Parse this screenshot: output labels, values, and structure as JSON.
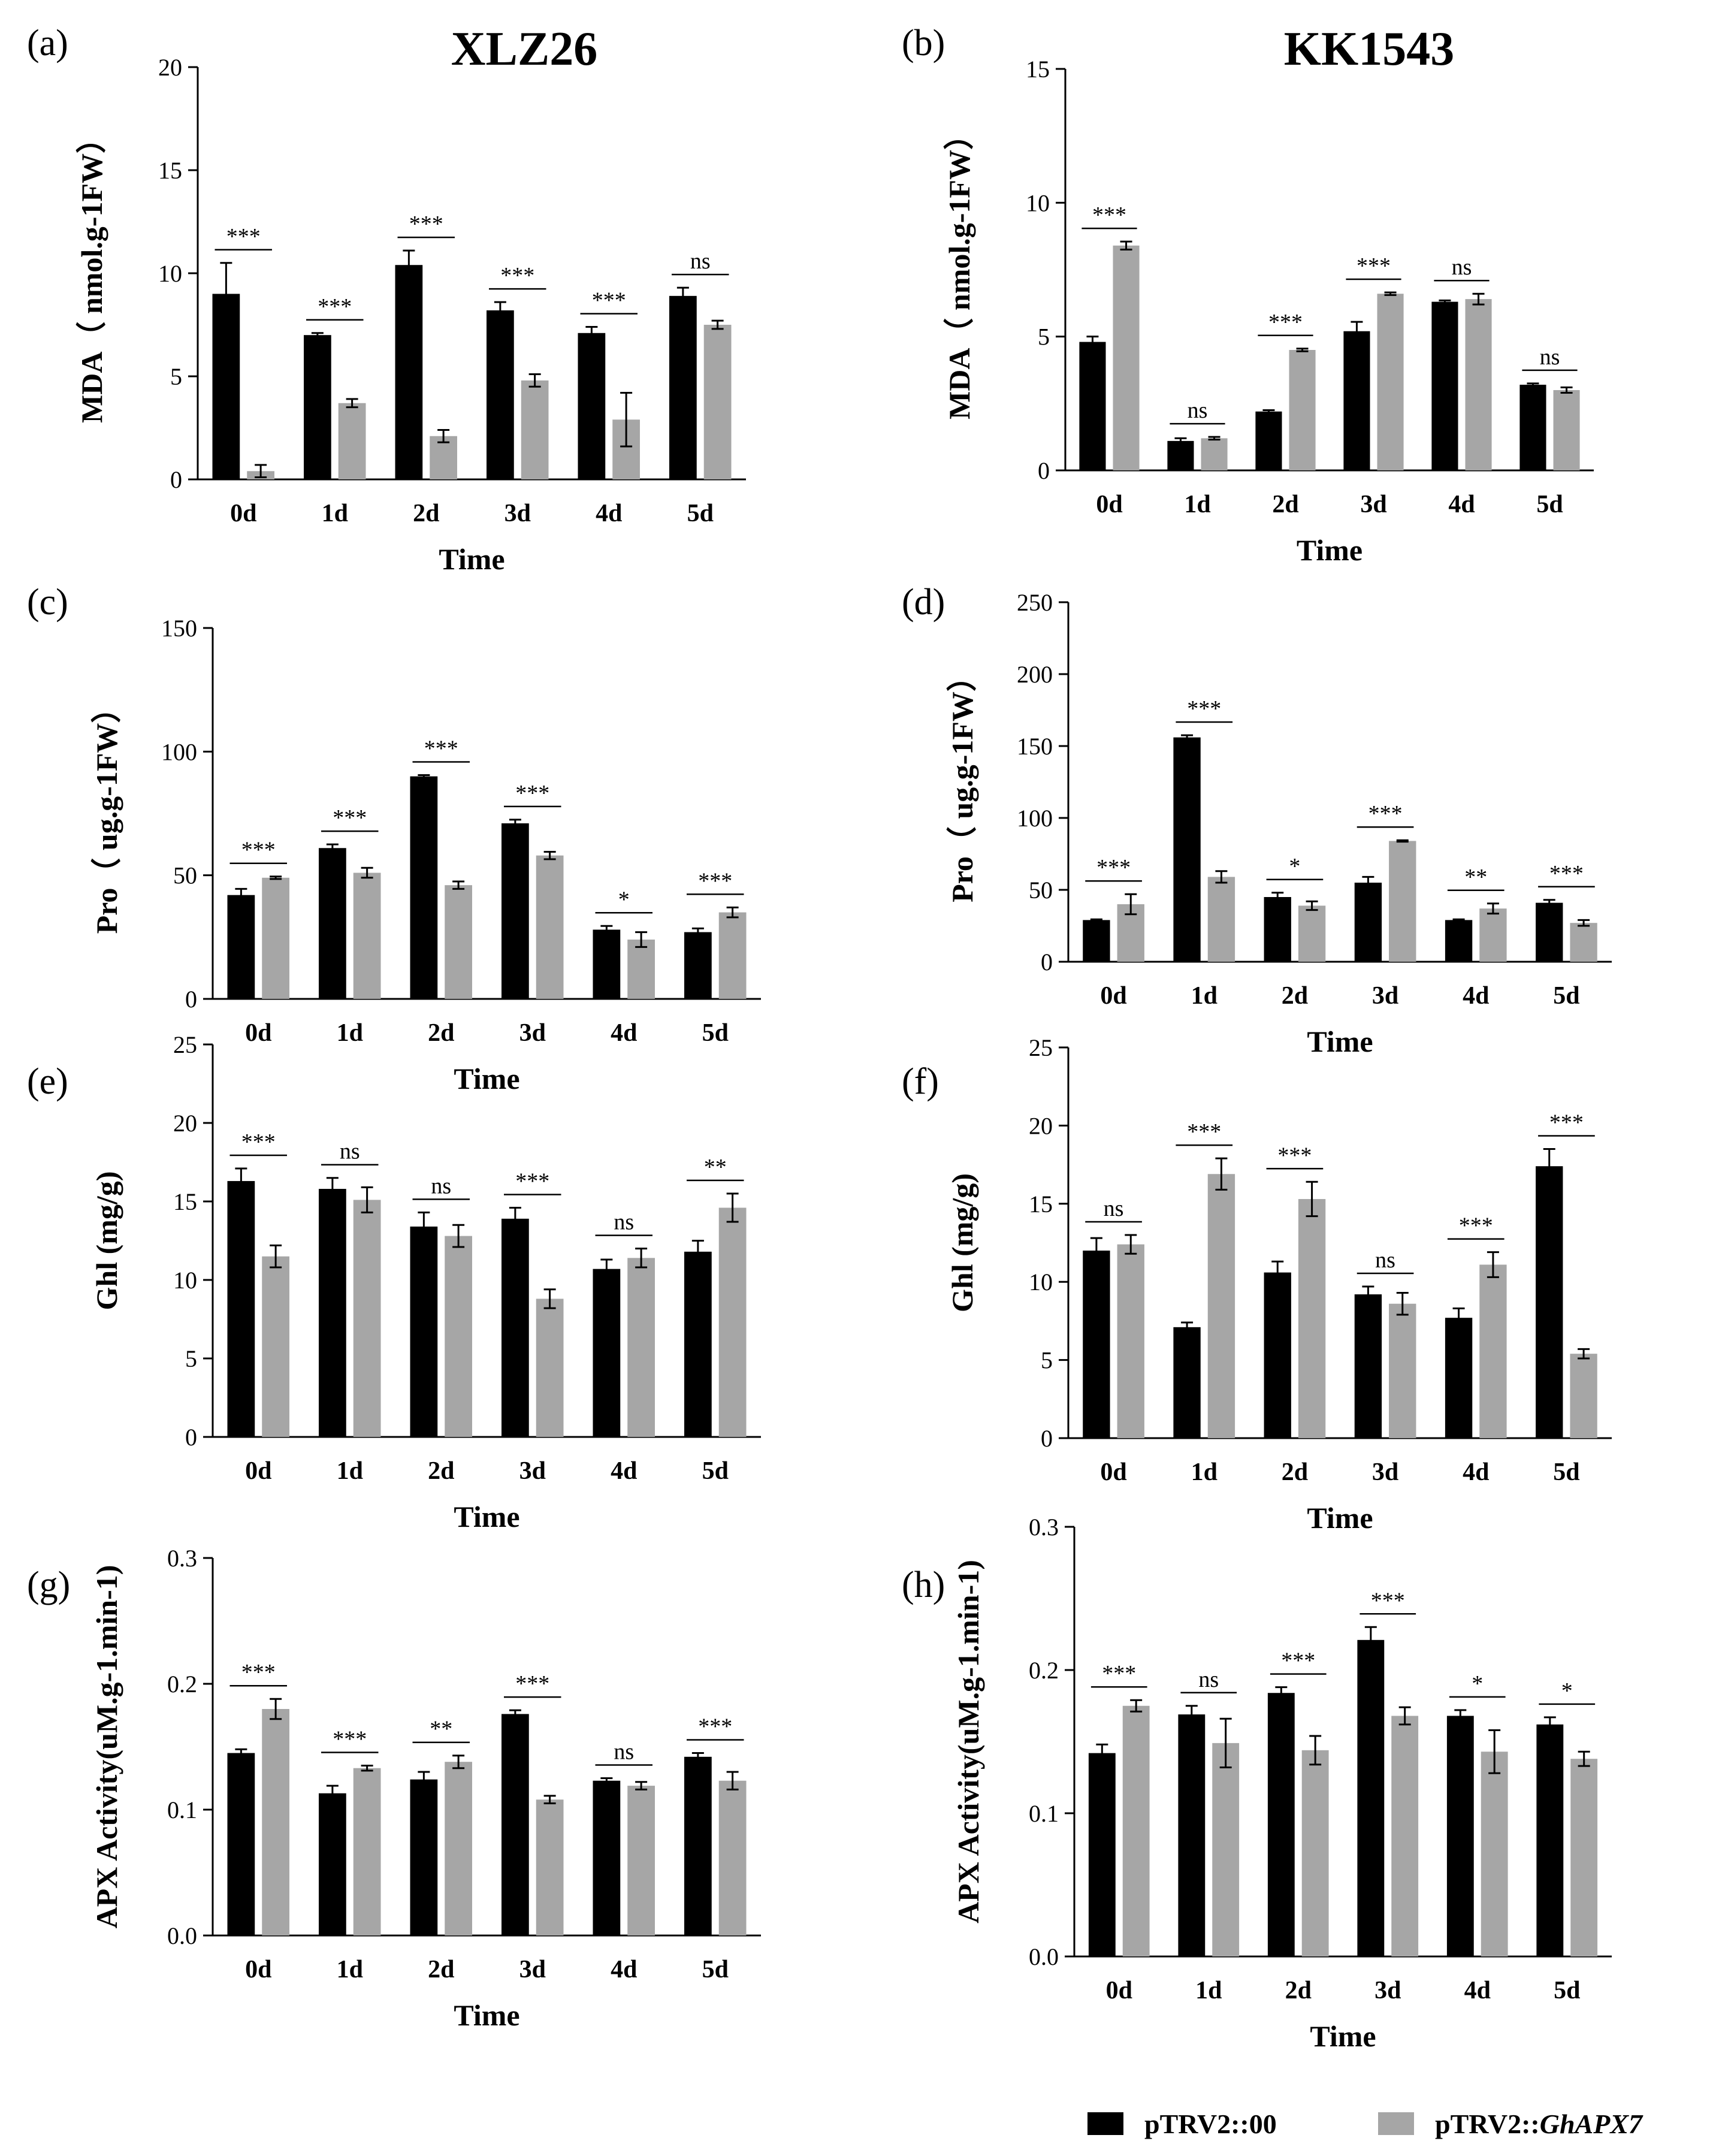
{
  "columns": [
    {
      "title": "XLZ26"
    },
    {
      "title": "KK1543"
    }
  ],
  "legend": {
    "items": [
      {
        "label_prefix": "pTRV2::",
        "label_main": "00",
        "italic": false,
        "color": "#000000"
      },
      {
        "label_prefix": "pTRV2::",
        "label_main": "GhAPX7",
        "italic": true,
        "color": "#a6a6a6"
      }
    ]
  },
  "colors": {
    "series1": "#000000",
    "series2": "#a6a6a6",
    "axis": "#000000"
  },
  "chart_data": [
    {
      "panel": "(a)",
      "type": "bar",
      "title": "XLZ26",
      "xlabel": "Time",
      "ylabel": "MDA（ nmol.g-1FW）",
      "ylim": [
        0,
        20
      ],
      "yticks": [
        0,
        5,
        10,
        15,
        20
      ],
      "ytick_labels": [
        "0",
        "5",
        "10",
        "15",
        "20"
      ],
      "categories": [
        "0d",
        "1d",
        "2d",
        "3d",
        "4d",
        "5d"
      ],
      "series": [
        {
          "name": "pTRV2::00",
          "values": [
            9.0,
            7.0,
            10.4,
            8.2,
            7.1,
            8.9
          ],
          "errors": [
            1.5,
            0.1,
            0.7,
            0.4,
            0.3,
            0.4
          ]
        },
        {
          "name": "pTRV2::GhAPX7",
          "values": [
            0.4,
            3.7,
            2.1,
            4.8,
            2.9,
            7.5
          ],
          "errors": [
            0.3,
            0.2,
            0.3,
            0.3,
            1.3,
            0.2
          ]
        }
      ],
      "significance": [
        "***",
        "***",
        "***",
        "***",
        "***",
        "ns"
      ]
    },
    {
      "panel": "(b)",
      "type": "bar",
      "title": "KK1543",
      "xlabel": "Time",
      "ylabel": "MDA（ nmol.g-1FW）",
      "ylim": [
        0,
        15
      ],
      "yticks": [
        0,
        5,
        10,
        15
      ],
      "ytick_labels": [
        "0",
        "5",
        "10",
        "15"
      ],
      "categories": [
        "0d",
        "1d",
        "2d",
        "3d",
        "4d",
        "5d"
      ],
      "series": [
        {
          "name": "pTRV2::00",
          "values": [
            4.8,
            1.1,
            2.2,
            5.2,
            6.3,
            3.2
          ],
          "errors": [
            0.2,
            0.1,
            0.05,
            0.35,
            0.05,
            0.05
          ]
        },
        {
          "name": "pTRV2::GhAPX7",
          "values": [
            8.4,
            1.2,
            4.5,
            6.6,
            6.4,
            3.0
          ],
          "errors": [
            0.15,
            0.05,
            0.05,
            0.05,
            0.2,
            0.1
          ]
        }
      ],
      "significance": [
        "***",
        "ns",
        "***",
        "***",
        "ns",
        "ns"
      ]
    },
    {
      "panel": "(c)",
      "type": "bar",
      "xlabel": "Time",
      "ylabel": "Pro（ ug.g-1FW）",
      "ylim": [
        0,
        150
      ],
      "yticks": [
        0,
        50,
        100,
        150
      ],
      "ytick_labels": [
        "0",
        "50",
        "100",
        "150"
      ],
      "categories": [
        "0d",
        "1d",
        "2d",
        "3d",
        "4d",
        "5d"
      ],
      "series": [
        {
          "name": "pTRV2::00",
          "values": [
            42,
            61,
            90,
            71,
            28,
            27
          ],
          "errors": [
            2.5,
            1.5,
            0.5,
            1.5,
            1.5,
            1.5
          ]
        },
        {
          "name": "pTRV2::GhAPX7",
          "values": [
            49,
            51,
            46,
            58,
            24,
            35
          ],
          "errors": [
            0.5,
            2.0,
            1.5,
            1.5,
            3.0,
            2.0
          ]
        }
      ],
      "significance": [
        "***",
        "***",
        "***",
        "***",
        "*",
        "***"
      ]
    },
    {
      "panel": "(d)",
      "type": "bar",
      "xlabel": "Time",
      "ylabel": "Pro（ ug.g-1FW）",
      "ylim": [
        0,
        250
      ],
      "yticks": [
        0,
        50,
        100,
        150,
        200,
        250
      ],
      "ytick_labels": [
        "0",
        "50",
        "100",
        "150",
        "200",
        "250"
      ],
      "categories": [
        "0d",
        "1d",
        "2d",
        "3d",
        "4d",
        "5d"
      ],
      "series": [
        {
          "name": "pTRV2::00",
          "values": [
            29,
            156,
            45,
            55,
            29,
            41
          ],
          "errors": [
            0.5,
            1.5,
            3,
            4,
            0.5,
            2
          ]
        },
        {
          "name": "pTRV2::GhAPX7",
          "values": [
            40,
            59,
            39,
            84,
            37,
            27
          ],
          "errors": [
            7,
            4,
            3,
            0.5,
            3.5,
            2
          ]
        }
      ],
      "significance": [
        "***",
        "***",
        "*",
        "***",
        "**",
        "***"
      ]
    },
    {
      "panel": "(e)",
      "type": "bar",
      "xlabel": "Time",
      "ylabel": "Ghl (mg/g)",
      "ylim": [
        0,
        25
      ],
      "yticks": [
        0,
        5,
        10,
        15,
        20,
        25
      ],
      "ytick_labels": [
        "0",
        "5",
        "10",
        "15",
        "20",
        "25"
      ],
      "categories": [
        "0d",
        "1d",
        "2d",
        "3d",
        "4d",
        "5d"
      ],
      "series": [
        {
          "name": "pTRV2::00",
          "values": [
            16.3,
            15.8,
            13.4,
            13.9,
            10.7,
            11.8
          ],
          "errors": [
            0.8,
            0.7,
            0.9,
            0.7,
            0.6,
            0.7
          ]
        },
        {
          "name": "pTRV2::GhAPX7",
          "values": [
            11.5,
            15.1,
            12.8,
            8.8,
            11.4,
            14.6
          ],
          "errors": [
            0.7,
            0.8,
            0.7,
            0.6,
            0.6,
            0.9
          ]
        }
      ],
      "significance": [
        "***",
        "ns",
        "ns",
        "***",
        "ns",
        "**"
      ]
    },
    {
      "panel": "(f)",
      "type": "bar",
      "xlabel": "Time",
      "ylabel": "Ghl (mg/g)",
      "ylim": [
        0,
        25
      ],
      "yticks": [
        0,
        5,
        10,
        15,
        20,
        25
      ],
      "ytick_labels": [
        "0",
        "5",
        "10",
        "15",
        "20",
        "25"
      ],
      "categories": [
        "0d",
        "1d",
        "2d",
        "3d",
        "4d",
        "5d"
      ],
      "series": [
        {
          "name": "pTRV2::00",
          "values": [
            12.0,
            7.1,
            10.6,
            9.2,
            7.7,
            17.4
          ],
          "errors": [
            0.8,
            0.3,
            0.7,
            0.5,
            0.6,
            1.1
          ]
        },
        {
          "name": "pTRV2::GhAPX7",
          "values": [
            12.4,
            16.9,
            15.3,
            8.6,
            11.1,
            5.4
          ],
          "errors": [
            0.6,
            1.0,
            1.1,
            0.7,
            0.8,
            0.3
          ]
        }
      ],
      "significance": [
        "ns",
        "***",
        "***",
        "ns",
        "***",
        "***"
      ]
    },
    {
      "panel": "(g)",
      "type": "bar",
      "xlabel": "Time",
      "ylabel": "APX  Activity(uM.g-1.min-1)",
      "ylim": [
        0,
        0.3
      ],
      "yticks": [
        0,
        0.1,
        0.2,
        0.3
      ],
      "ytick_labels": [
        "0.0",
        "0.1",
        "0.2",
        "0.3"
      ],
      "categories": [
        "0d",
        "1d",
        "2d",
        "3d",
        "4d",
        "5d"
      ],
      "series": [
        {
          "name": "pTRV2::00",
          "values": [
            0.145,
            0.113,
            0.124,
            0.176,
            0.123,
            0.142
          ],
          "errors": [
            0.003,
            0.006,
            0.006,
            0.003,
            0.002,
            0.003
          ]
        },
        {
          "name": "pTRV2::GhAPX7",
          "values": [
            0.18,
            0.133,
            0.138,
            0.108,
            0.119,
            0.123
          ],
          "errors": [
            0.008,
            0.002,
            0.005,
            0.003,
            0.003,
            0.007
          ]
        }
      ],
      "significance": [
        "***",
        "***",
        "**",
        "***",
        "ns",
        "***"
      ]
    },
    {
      "panel": "(h)",
      "type": "bar",
      "xlabel": "Time",
      "ylabel": "APX Activity(uM.g-1.min-1)",
      "ylim": [
        0,
        0.3
      ],
      "yticks": [
        0,
        0.1,
        0.2,
        0.3
      ],
      "ytick_labels": [
        "0.0",
        "0.1",
        "0.2",
        "0.3"
      ],
      "categories": [
        "0d",
        "1d",
        "2d",
        "3d",
        "4d",
        "5d"
      ],
      "series": [
        {
          "name": "pTRV2::00",
          "values": [
            0.142,
            0.169,
            0.184,
            0.221,
            0.168,
            0.162
          ],
          "errors": [
            0.006,
            0.006,
            0.004,
            0.009,
            0.004,
            0.005
          ]
        },
        {
          "name": "pTRV2::GhAPX7",
          "values": [
            0.175,
            0.149,
            0.144,
            0.168,
            0.143,
            0.138
          ],
          "errors": [
            0.004,
            0.017,
            0.01,
            0.006,
            0.015,
            0.005
          ]
        }
      ],
      "significance": [
        "***",
        "ns",
        "***",
        "***",
        "*",
        "*"
      ]
    }
  ]
}
